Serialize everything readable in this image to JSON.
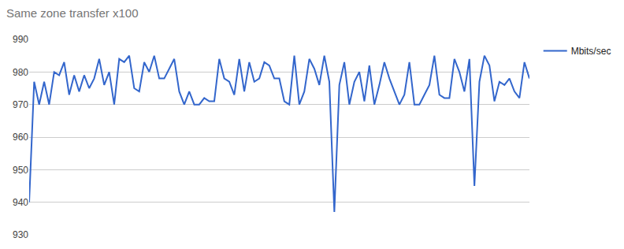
{
  "chart_data": {
    "type": "line",
    "title": "Same zone transfer x100",
    "categories": [
      null,
      null,
      null,
      null,
      null,
      null,
      null,
      null,
      null,
      null,
      null,
      null,
      null,
      null,
      null,
      null,
      null,
      null,
      null,
      null,
      null,
      null,
      null,
      null,
      null,
      null,
      null,
      null,
      null,
      null,
      null,
      null,
      null,
      null,
      null,
      null,
      null,
      null,
      null,
      null,
      null,
      null,
      null,
      null,
      null,
      null,
      null,
      null,
      null,
      null,
      null,
      null,
      null,
      null,
      null,
      null,
      null,
      null,
      null,
      null,
      null,
      null,
      null,
      null,
      null,
      null,
      null,
      null,
      null,
      null,
      null,
      null,
      null,
      null,
      null,
      null,
      null,
      null,
      null,
      null,
      null,
      null,
      null,
      null,
      null,
      null,
      null,
      null,
      null,
      null,
      null,
      null,
      null,
      null,
      null,
      null,
      null,
      null,
      null,
      null,
      null
    ],
    "series": [
      {
        "name": "Mbits/sec",
        "color": "#3366cc",
        "values": [
          940,
          977,
          970,
          977,
          970,
          980,
          979,
          983,
          973,
          979,
          974,
          979,
          975,
          978,
          984,
          976,
          980,
          970,
          984,
          983,
          985,
          975,
          974,
          983,
          980,
          985,
          978,
          978,
          981,
          984,
          974,
          970,
          974,
          970,
          970,
          972,
          971,
          971,
          984,
          978,
          977,
          973,
          984,
          974,
          983,
          977,
          978,
          983,
          982,
          978,
          978,
          971,
          970,
          985,
          970,
          974,
          984,
          981,
          976,
          985,
          977,
          937,
          976,
          983,
          970,
          977,
          980,
          971,
          982,
          970,
          976,
          983,
          978,
          974,
          970,
          973,
          983,
          970,
          970,
          973,
          976,
          985,
          973,
          972,
          972,
          984,
          980,
          974,
          984,
          945,
          977,
          985,
          982,
          971,
          977,
          976,
          978,
          974,
          972,
          983,
          978
        ]
      }
    ],
    "ylim": [
      930,
      990
    ],
    "yticks": [
      930,
      940,
      950,
      960,
      970,
      980,
      990
    ],
    "grid": true,
    "legend": "right",
    "tick_labels": "y"
  }
}
